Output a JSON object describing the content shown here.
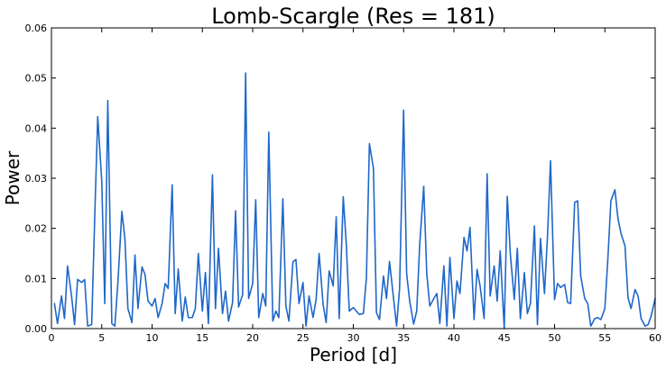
{
  "chart_data": {
    "type": "line",
    "title": "Lomb-Scargle (Res = 181)",
    "xlabel": "Period [d]",
    "ylabel": "Power",
    "xlim": [
      0,
      60
    ],
    "ylim": [
      0,
      0.06
    ],
    "x_ticks": [
      0,
      5,
      10,
      15,
      20,
      25,
      30,
      35,
      40,
      45,
      50,
      55,
      60
    ],
    "y_ticks": [
      0.0,
      0.01,
      0.02,
      0.03,
      0.04,
      0.05,
      0.06
    ],
    "x_tick_labels": [
      "0",
      "5",
      "10",
      "15",
      "20",
      "25",
      "30",
      "35",
      "40",
      "45",
      "50",
      "55",
      "60"
    ],
    "y_tick_labels": [
      "0.00",
      "0.01",
      "0.02",
      "0.03",
      "0.04",
      "0.05",
      "0.06"
    ],
    "grid": false,
    "line_color": "#1f67c9",
    "series": [
      {
        "x": [
          0.3,
          0.6,
          1.0,
          1.3,
          1.6,
          2.0,
          2.3,
          2.6,
          3.0,
          3.3,
          3.6,
          4.0,
          4.3,
          4.6,
          5.0,
          5.3,
          5.6,
          6.0,
          6.3,
          6.6,
          7.0,
          7.3,
          7.6,
          8.0,
          8.3,
          8.6,
          9.0,
          9.3,
          9.6,
          10.0,
          10.3,
          10.6,
          11.0,
          11.3,
          11.6,
          12.0,
          12.3,
          12.6,
          13.0,
          13.3,
          13.6,
          14.0,
          14.3,
          14.6,
          15.0,
          15.3,
          15.6,
          16.0,
          16.3,
          16.6,
          17.0,
          17.3,
          17.6,
          18.0,
          18.3,
          18.6,
          19.0,
          19.3,
          19.6,
          20.0,
          20.3,
          20.6,
          21.0,
          21.3,
          21.6,
          22.0,
          22.3,
          22.6,
          23.0,
          23.3,
          23.6,
          24.0,
          24.3,
          24.6,
          25.0,
          25.3,
          25.6,
          26.0,
          26.3,
          26.6,
          27.0,
          27.3,
          27.6,
          28.0,
          28.3,
          28.6,
          29.0,
          29.3,
          29.6,
          30.0,
          30.3,
          30.6,
          31.0,
          31.3,
          31.6,
          32.0,
          32.3,
          32.6,
          33.0,
          33.3,
          33.6,
          34.0,
          34.3,
          34.6,
          35.0,
          35.3,
          35.6,
          36.0,
          36.3,
          36.6,
          37.0,
          37.3,
          37.6,
          38.0,
          38.3,
          38.6,
          39.0,
          39.3,
          39.6,
          40.0,
          40.3,
          40.6,
          41.0,
          41.3,
          41.6,
          42.0,
          42.3,
          42.6,
          43.0,
          43.3,
          43.6,
          44.0,
          44.3,
          44.6,
          45.0,
          45.3,
          45.6,
          46.0,
          46.3,
          46.6,
          47.0,
          47.3,
          47.6,
          48.0,
          48.3,
          48.6,
          49.0,
          49.3,
          49.6,
          50.0,
          50.3,
          50.6,
          51.0,
          51.3,
          51.6,
          52.0,
          52.3,
          52.6,
          53.0,
          53.3,
          53.6,
          54.0,
          54.3,
          54.6,
          55.0,
          55.3,
          55.6,
          56.0,
          56.3,
          56.6,
          57.0,
          57.3,
          57.6,
          58.0,
          58.3,
          58.6,
          59.0,
          59.3,
          59.6,
          60.0
        ],
        "values": [
          0.005,
          0.001,
          0.0065,
          0.002,
          0.0125,
          0.0065,
          0.0008,
          0.0098,
          0.0092,
          0.0098,
          0.0005,
          0.0008,
          0.022,
          0.0423,
          0.0295,
          0.005,
          0.0455,
          0.001,
          0.0005,
          0.009,
          0.0234,
          0.018,
          0.004,
          0.0012,
          0.0147,
          0.004,
          0.0123,
          0.0108,
          0.0055,
          0.0045,
          0.006,
          0.0022,
          0.005,
          0.009,
          0.008,
          0.0287,
          0.003,
          0.0119,
          0.0015,
          0.0063,
          0.0022,
          0.0022,
          0.004,
          0.015,
          0.0035,
          0.0112,
          0.001,
          0.0307,
          0.004,
          0.016,
          0.003,
          0.0075,
          0.0015,
          0.0052,
          0.0235,
          0.0043,
          0.0068,
          0.051,
          0.006,
          0.009,
          0.0257,
          0.0022,
          0.007,
          0.0045,
          0.0392,
          0.0015,
          0.0035,
          0.0022,
          0.0259,
          0.0045,
          0.0015,
          0.0133,
          0.0138,
          0.005,
          0.0092,
          0.0005,
          0.0065,
          0.0022,
          0.0058,
          0.015,
          0.0048,
          0.0012,
          0.0115,
          0.0085,
          0.0223,
          0.002,
          0.0263,
          0.017,
          0.0035,
          0.0042,
          0.0035,
          0.0028,
          0.003,
          0.01,
          0.0369,
          0.032,
          0.0032,
          0.0018,
          0.0105,
          0.006,
          0.0134,
          0.006,
          0.0005,
          0.008,
          0.0436,
          0.011,
          0.0055,
          0.0009,
          0.0035,
          0.0168,
          0.0284,
          0.011,
          0.0045,
          0.006,
          0.007,
          0.001,
          0.0125,
          0.0005,
          0.0142,
          0.002,
          0.0095,
          0.007,
          0.0182,
          0.0155,
          0.0202,
          0.0018,
          0.0118,
          0.0085,
          0.002,
          0.0309,
          0.0065,
          0.0125,
          0.0055,
          0.0155,
          0.0,
          0.0264,
          0.015,
          0.0058,
          0.016,
          0.002,
          0.0112,
          0.003,
          0.005,
          0.0205,
          0.0008,
          0.018,
          0.007,
          0.0185,
          0.0335,
          0.0058,
          0.009,
          0.0082,
          0.0088,
          0.0052,
          0.005,
          0.0252,
          0.0255,
          0.0105,
          0.006,
          0.005,
          0.0005,
          0.002,
          0.0022,
          0.0018,
          0.004,
          0.014,
          0.0255,
          0.0277,
          0.022,
          0.019,
          0.0165,
          0.0062,
          0.004,
          0.0078,
          0.0065,
          0.002,
          0.0005,
          0.0008,
          0.0025,
          0.006
        ]
      }
    ]
  }
}
